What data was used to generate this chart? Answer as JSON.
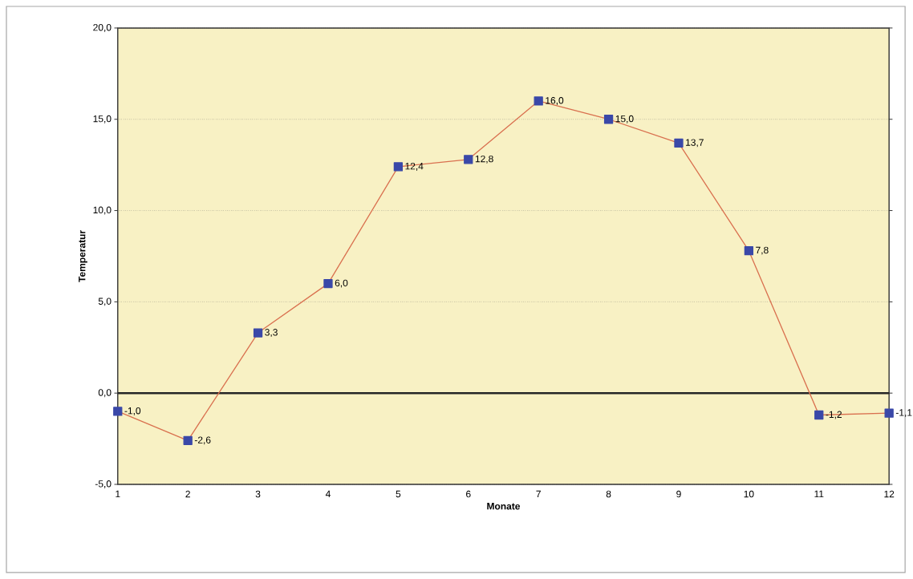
{
  "chart_data": {
    "type": "line",
    "xlabel": "Monate",
    "ylabel": "Temperatur",
    "x": [
      1,
      2,
      3,
      4,
      5,
      6,
      7,
      8,
      9,
      10,
      11,
      12
    ],
    "values": [
      -1.0,
      -2.6,
      3.3,
      6.0,
      12.4,
      12.8,
      16.0,
      15.0,
      13.7,
      7.8,
      -1.2,
      -1.1
    ],
    "value_labels": [
      "-1,0",
      "-2,6",
      "3,3",
      "6,0",
      "12,4",
      "12,8",
      "16,0",
      "15,0",
      "13,7",
      "7,8",
      "-1,2",
      "-1,1"
    ],
    "color": "#d9704f",
    "marker": "square",
    "line_style": "solid",
    "xlim": [
      1,
      12
    ],
    "xticks": [
      1,
      2,
      3,
      4,
      5,
      6,
      7,
      8,
      9,
      10,
      11,
      12
    ],
    "ylim": [
      -5,
      20
    ],
    "yticks": [
      {
        "value": -5,
        "label": "-5,0"
      },
      {
        "value": 0,
        "label": "0,0"
      },
      {
        "value": 5,
        "label": "5,0"
      },
      {
        "value": 10,
        "label": "10,0"
      },
      {
        "value": 15,
        "label": "15,0"
      },
      {
        "value": 20,
        "label": "20,0"
      }
    ],
    "grid": "y"
  }
}
